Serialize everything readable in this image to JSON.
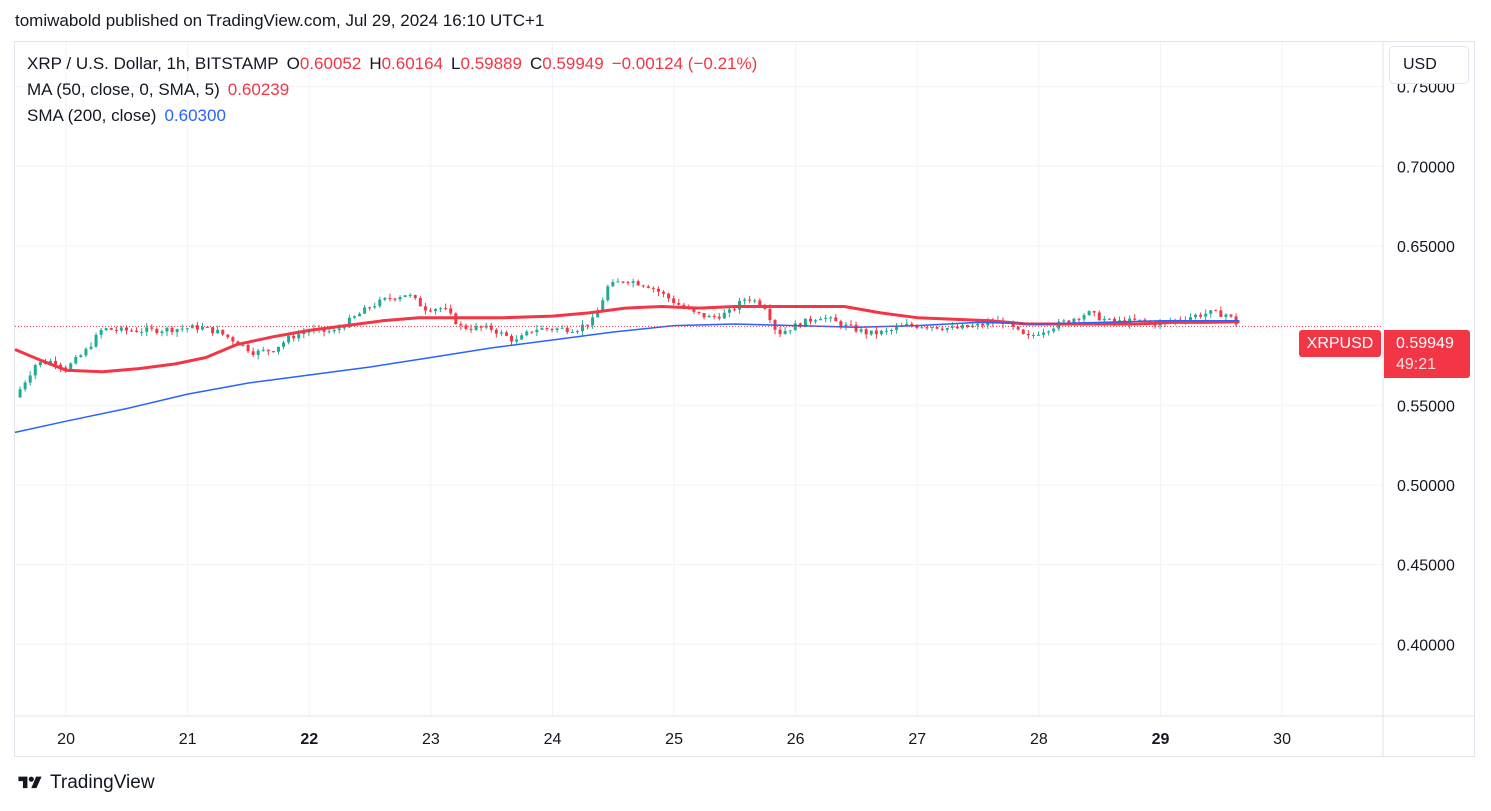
{
  "publisher_line": "tomiwabold published on TradingView.com, Jul 29, 2024 16:10 UTC+1",
  "legend": {
    "symbol": "XRP / U.S. Dollar, 1h, BITSTAMP",
    "o_label": "O",
    "o_value": "0.60052",
    "h_label": "H",
    "h_value": "0.60164",
    "l_label": "L",
    "l_value": "0.59889",
    "c_label": "C",
    "c_value": "0.59949",
    "change": "−0.00124 (−0.21%)",
    "ma_label": "MA (50, close, 0, SMA, 5)",
    "ma_value": "0.60239",
    "sma_label": "SMA (200, close)",
    "sma_value": "0.60300"
  },
  "currency_button": "USD",
  "price_tag": {
    "symbol": "XRPUSD",
    "price": "0.59949",
    "countdown": "49:21"
  },
  "footer_brand": "TradingView",
  "colors": {
    "up": "#22ab94",
    "down": "#f23645",
    "ma50": "#f23645",
    "sma200": "#2962ff",
    "grid": "#f0f3fa"
  },
  "icons": [
    "tradingview-logo-icon"
  ],
  "chart_data": {
    "type": "candlestick",
    "interval": "1h",
    "y_ticks": [
      "0.75000",
      "0.70000",
      "0.65000",
      "0.55000",
      "0.50000",
      "0.45000",
      "0.40000"
    ],
    "y_tick_values": [
      0.75,
      0.7,
      0.65,
      0.55,
      0.5,
      0.45,
      0.4
    ],
    "ylim": [
      0.355,
      0.778
    ],
    "x_ticks": [
      {
        "day": 20,
        "label": "20",
        "bold": false
      },
      {
        "day": 21,
        "label": "21",
        "bold": false
      },
      {
        "day": 22,
        "label": "22",
        "bold": true
      },
      {
        "day": 23,
        "label": "23",
        "bold": false
      },
      {
        "day": 24,
        "label": "24",
        "bold": false
      },
      {
        "day": 25,
        "label": "25",
        "bold": false
      },
      {
        "day": 26,
        "label": "26",
        "bold": false
      },
      {
        "day": 27,
        "label": "27",
        "bold": false
      },
      {
        "day": 28,
        "label": "28",
        "bold": false
      },
      {
        "day": 29,
        "label": "29",
        "bold": true
      },
      {
        "day": 30,
        "label": "30",
        "bold": false
      }
    ],
    "xlim": [
      19.58,
      30.83
    ],
    "last_price": 0.59949,
    "close_path": [
      [
        19.58,
        0.555
      ],
      [
        19.75,
        0.576
      ],
      [
        19.9,
        0.578
      ],
      [
        20.0,
        0.573
      ],
      [
        20.15,
        0.583
      ],
      [
        20.3,
        0.598
      ],
      [
        20.45,
        0.597
      ],
      [
        20.7,
        0.597
      ],
      [
        20.9,
        0.598
      ],
      [
        21.1,
        0.599
      ],
      [
        21.25,
        0.596
      ],
      [
        21.4,
        0.59
      ],
      [
        21.55,
        0.583
      ],
      [
        21.7,
        0.585
      ],
      [
        21.85,
        0.593
      ],
      [
        22.0,
        0.597
      ],
      [
        22.2,
        0.596
      ],
      [
        22.35,
        0.604
      ],
      [
        22.5,
        0.612
      ],
      [
        22.65,
        0.617
      ],
      [
        22.8,
        0.62
      ],
      [
        22.95,
        0.611
      ],
      [
        23.1,
        0.611
      ],
      [
        23.25,
        0.599
      ],
      [
        23.5,
        0.598
      ],
      [
        23.7,
        0.59
      ],
      [
        23.85,
        0.598
      ],
      [
        24.0,
        0.598
      ],
      [
        24.2,
        0.598
      ],
      [
        24.35,
        0.604
      ],
      [
        24.45,
        0.624
      ],
      [
        24.6,
        0.629
      ],
      [
        24.8,
        0.625
      ],
      [
        25.0,
        0.615
      ],
      [
        25.15,
        0.608
      ],
      [
        25.3,
        0.605
      ],
      [
        25.45,
        0.608
      ],
      [
        25.6,
        0.618
      ],
      [
        25.75,
        0.612
      ],
      [
        25.85,
        0.595
      ],
      [
        26.0,
        0.6
      ],
      [
        26.2,
        0.606
      ],
      [
        26.4,
        0.6
      ],
      [
        26.6,
        0.595
      ],
      [
        26.75,
        0.596
      ],
      [
        26.9,
        0.6
      ],
      [
        27.1,
        0.6
      ],
      [
        27.3,
        0.598
      ],
      [
        27.5,
        0.6
      ],
      [
        27.7,
        0.603
      ],
      [
        27.9,
        0.592
      ],
      [
        28.0,
        0.596
      ],
      [
        28.2,
        0.602
      ],
      [
        28.4,
        0.608
      ],
      [
        28.6,
        0.602
      ],
      [
        28.8,
        0.603
      ],
      [
        29.0,
        0.601
      ],
      [
        29.2,
        0.605
      ],
      [
        29.4,
        0.608
      ],
      [
        29.55,
        0.607
      ],
      [
        29.65,
        0.5995
      ]
    ],
    "series": [
      {
        "name": "MA (50, close, 0, SMA, 5)",
        "points": [
          [
            19.58,
            0.585
          ],
          [
            19.8,
            0.578
          ],
          [
            20.0,
            0.572
          ],
          [
            20.3,
            0.571
          ],
          [
            20.6,
            0.573
          ],
          [
            20.9,
            0.576
          ],
          [
            21.15,
            0.58
          ],
          [
            21.4,
            0.588
          ],
          [
            21.7,
            0.593
          ],
          [
            22.0,
            0.597
          ],
          [
            22.3,
            0.6
          ],
          [
            22.6,
            0.603
          ],
          [
            22.9,
            0.605
          ],
          [
            23.2,
            0.605
          ],
          [
            23.6,
            0.605
          ],
          [
            24.0,
            0.606
          ],
          [
            24.3,
            0.608
          ],
          [
            24.6,
            0.611
          ],
          [
            24.9,
            0.612
          ],
          [
            25.2,
            0.611
          ],
          [
            25.5,
            0.612
          ],
          [
            25.8,
            0.612
          ],
          [
            26.1,
            0.612
          ],
          [
            26.4,
            0.612
          ],
          [
            26.7,
            0.608
          ],
          [
            27.0,
            0.605
          ],
          [
            27.3,
            0.604
          ],
          [
            27.6,
            0.603
          ],
          [
            27.9,
            0.601
          ],
          [
            28.2,
            0.601
          ],
          [
            28.5,
            0.601
          ],
          [
            28.8,
            0.601
          ],
          [
            29.1,
            0.602
          ],
          [
            29.4,
            0.602
          ],
          [
            29.65,
            0.6024
          ]
        ]
      },
      {
        "name": "SMA (200, close)",
        "points": [
          [
            19.58,
            0.533
          ],
          [
            20.0,
            0.54
          ],
          [
            20.5,
            0.548
          ],
          [
            21.0,
            0.557
          ],
          [
            21.5,
            0.564
          ],
          [
            22.0,
            0.569
          ],
          [
            22.5,
            0.574
          ],
          [
            23.0,
            0.58
          ],
          [
            23.5,
            0.586
          ],
          [
            24.0,
            0.591
          ],
          [
            24.5,
            0.596
          ],
          [
            25.0,
            0.6
          ],
          [
            25.5,
            0.601
          ],
          [
            26.0,
            0.6
          ],
          [
            26.5,
            0.599
          ],
          [
            27.0,
            0.6
          ],
          [
            27.5,
            0.602
          ],
          [
            28.0,
            0.601
          ],
          [
            28.5,
            0.602
          ],
          [
            29.0,
            0.603
          ],
          [
            29.3,
            0.603
          ],
          [
            29.65,
            0.603
          ]
        ]
      }
    ]
  }
}
